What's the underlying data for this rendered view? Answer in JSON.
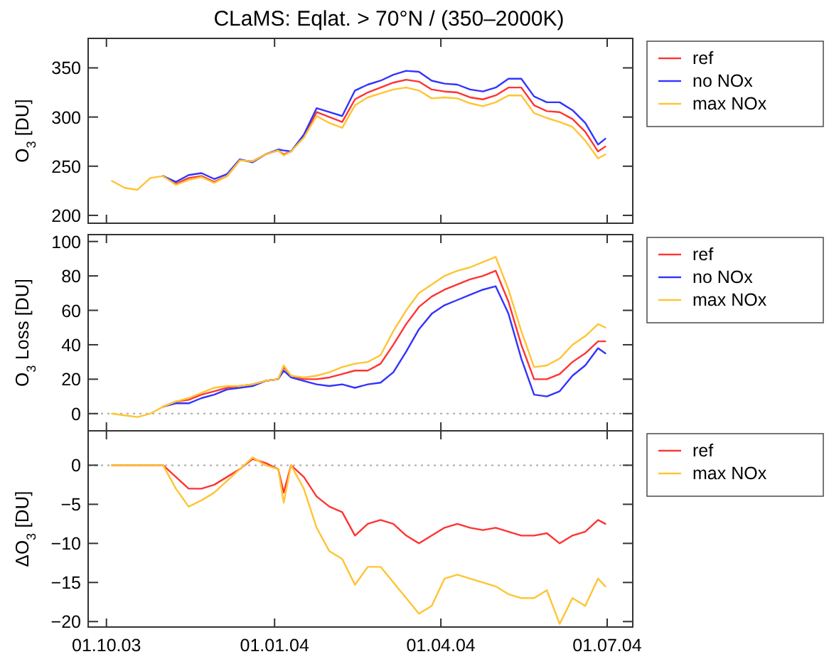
{
  "chart_data": [
    {
      "type": "line",
      "title": "CLaMS: Eqlat. > 70°N / (350–2000K)",
      "ylabel": "O$_{3}$ [DU]",
      "legend": "right",
      "tick_labels": "y",
      "x": [
        "2003-10-04",
        "2003-10-11",
        "2003-10-18",
        "2003-10-25",
        "2003-11-01",
        "2003-11-08",
        "2003-11-15",
        "2003-11-22",
        "2003-11-29",
        "2003-12-06",
        "2003-12-13",
        "2003-12-20",
        "2003-12-27",
        "2004-01-03",
        "2004-01-06",
        "2004-01-10",
        "2004-01-17",
        "2004-01-24",
        "2004-01-31",
        "2004-02-07",
        "2004-02-14",
        "2004-02-21",
        "2004-02-28",
        "2004-03-06",
        "2004-03-13",
        "2004-03-20",
        "2004-03-27",
        "2004-04-03",
        "2004-04-10",
        "2004-04-17",
        "2004-04-24",
        "2004-05-01",
        "2004-05-08",
        "2004-05-15",
        "2004-05-22",
        "2004-05-29",
        "2004-06-05",
        "2004-06-12",
        "2004-06-19",
        "2004-06-26",
        "2004-06-30"
      ],
      "xlim": [
        "2003-09-21",
        "2004-07-15"
      ],
      "xticks": [
        {
          "value": "2003-10-01",
          "label": null
        },
        {
          "value": "2004-01-01",
          "label": null
        },
        {
          "value": "2004-04-01",
          "label": null
        },
        {
          "value": "2004-07-01",
          "label": null
        }
      ],
      "ylim": [
        192,
        380
      ],
      "yticks": [
        200,
        250,
        300,
        350
      ],
      "series": [
        {
          "name": "ref",
          "color": "#ff3333",
          "values": [
            null,
            null,
            null,
            null,
            240,
            232,
            238,
            240,
            234,
            240,
            256,
            255,
            262,
            266,
            262,
            265,
            280,
            305,
            300,
            295,
            318,
            325,
            330,
            335,
            338,
            336,
            328,
            326,
            325,
            320,
            318,
            322,
            330,
            330,
            312,
            306,
            305,
            298,
            285,
            265,
            270
          ]
        },
        {
          "name": "no NOx",
          "color": "#3333ff",
          "values": [
            null,
            null,
            null,
            null,
            240,
            234,
            241,
            243,
            237,
            242,
            257,
            254,
            262,
            267,
            266,
            265,
            282,
            309,
            305,
            301,
            327,
            333,
            337,
            343,
            347,
            346,
            337,
            334,
            333,
            328,
            326,
            330,
            339,
            339,
            321,
            315,
            315,
            307,
            294,
            272,
            278
          ]
        },
        {
          "name": "max NOx",
          "color": "#ffc433",
          "values": [
            235,
            228,
            226,
            238,
            240,
            231,
            236,
            239,
            233,
            240,
            256,
            255,
            262,
            266,
            261,
            265,
            279,
            301,
            294,
            289,
            312,
            320,
            324,
            328,
            330,
            327,
            319,
            320,
            319,
            314,
            311,
            315,
            322,
            322,
            304,
            299,
            295,
            290,
            276,
            258,
            262
          ]
        }
      ]
    },
    {
      "type": "line",
      "ylabel": "O$_{3}$ Loss [DU]",
      "legend": "right",
      "tick_labels": "y",
      "x": [
        "2003-10-04",
        "2003-10-11",
        "2003-10-18",
        "2003-10-25",
        "2003-11-01",
        "2003-11-08",
        "2003-11-15",
        "2003-11-22",
        "2003-11-29",
        "2003-12-06",
        "2003-12-13",
        "2003-12-20",
        "2003-12-27",
        "2004-01-03",
        "2004-01-06",
        "2004-01-10",
        "2004-01-17",
        "2004-01-24",
        "2004-01-31",
        "2004-02-07",
        "2004-02-14",
        "2004-02-21",
        "2004-02-28",
        "2004-03-06",
        "2004-03-13",
        "2004-03-20",
        "2004-03-27",
        "2004-04-03",
        "2004-04-10",
        "2004-04-17",
        "2004-04-24",
        "2004-05-01",
        "2004-05-08",
        "2004-05-15",
        "2004-05-22",
        "2004-05-29",
        "2004-06-05",
        "2004-06-12",
        "2004-06-19",
        "2004-06-26",
        "2004-06-30"
      ],
      "xlim": [
        "2003-09-21",
        "2004-07-15"
      ],
      "xticks": [
        {
          "value": "2003-10-01",
          "label": null
        },
        {
          "value": "2004-01-01",
          "label": null
        },
        {
          "value": "2004-04-01",
          "label": null
        },
        {
          "value": "2004-07-01",
          "label": null
        }
      ],
      "ylim": [
        -10,
        104
      ],
      "yticks": [
        0,
        20,
        40,
        60,
        80,
        100
      ],
      "ref_lines": [
        {
          "axis": "y",
          "value": 0,
          "color": "#aaaaaa",
          "line_style": "dotted"
        }
      ],
      "series": [
        {
          "name": "ref",
          "color": "#ff3333",
          "values": [
            null,
            null,
            null,
            null,
            4,
            7,
            8,
            11,
            13,
            15,
            16,
            17,
            19,
            20,
            27,
            22,
            20,
            20,
            21,
            23,
            25,
            25,
            29,
            40,
            52,
            62,
            68,
            72,
            75,
            78,
            80,
            83,
            65,
            40,
            20,
            20,
            23,
            30,
            35,
            42,
            42
          ]
        },
        {
          "name": "no NOx",
          "color": "#3333ff",
          "values": [
            null,
            null,
            null,
            null,
            4,
            6,
            6,
            9,
            11,
            14,
            15,
            16,
            19,
            20,
            25,
            21,
            19,
            17,
            16,
            17,
            15,
            17,
            18,
            24,
            36,
            49,
            58,
            63,
            66,
            69,
            72,
            74,
            58,
            32,
            11,
            10,
            13,
            22,
            28,
            38,
            35
          ]
        },
        {
          "name": "max NOx",
          "color": "#ffc433",
          "values": [
            0,
            -1,
            -2,
            0,
            4,
            7,
            9,
            12,
            15,
            16,
            16,
            17,
            19,
            20,
            28,
            22,
            21,
            22,
            24,
            27,
            29,
            30,
            34,
            48,
            60,
            70,
            75,
            80,
            83,
            85,
            88,
            91,
            72,
            48,
            27,
            28,
            32,
            40,
            45,
            52,
            50
          ]
        }
      ]
    },
    {
      "type": "line",
      "ylabel": "ΔO$_{3}$ [DU]",
      "legend": "right",
      "x": [
        "2003-10-04",
        "2003-10-11",
        "2003-10-18",
        "2003-10-25",
        "2003-11-01",
        "2003-11-08",
        "2003-11-15",
        "2003-11-22",
        "2003-11-29",
        "2003-12-06",
        "2003-12-13",
        "2003-12-20",
        "2003-12-27",
        "2004-01-03",
        "2004-01-06",
        "2004-01-10",
        "2004-01-17",
        "2004-01-24",
        "2004-01-31",
        "2004-02-07",
        "2004-02-14",
        "2004-02-21",
        "2004-02-28",
        "2004-03-06",
        "2004-03-13",
        "2004-03-20",
        "2004-03-27",
        "2004-04-03",
        "2004-04-10",
        "2004-04-17",
        "2004-04-24",
        "2004-05-01",
        "2004-05-08",
        "2004-05-15",
        "2004-05-22",
        "2004-05-29",
        "2004-06-05",
        "2004-06-12",
        "2004-06-19",
        "2004-06-26",
        "2004-06-30"
      ],
      "xlim": [
        "2003-09-21",
        "2004-07-15"
      ],
      "xticks": [
        {
          "value": "2003-10-01",
          "label": "01.10.03"
        },
        {
          "value": "2004-01-01",
          "label": "01.01.04"
        },
        {
          "value": "2004-04-01",
          "label": "01.04.04"
        },
        {
          "value": "2004-07-01",
          "label": "01.07.04"
        }
      ],
      "ylim": [
        -20.7,
        4.4
      ],
      "yticks": [
        {
          "value": 0,
          "label": "0"
        },
        {
          "value": -5,
          "label": "−5"
        },
        {
          "value": -10,
          "label": "−10"
        },
        {
          "value": -15,
          "label": "−15"
        },
        {
          "value": -20,
          "label": "−20"
        }
      ],
      "ref_lines": [
        {
          "axis": "y",
          "value": 0,
          "color": "#aaaaaa",
          "line_style": "dotted"
        }
      ],
      "series": [
        {
          "name": "ref",
          "color": "#ff3333",
          "values": [
            0,
            0,
            0,
            0,
            0,
            -1.5,
            -3,
            -3,
            -2.5,
            -1.5,
            -0.5,
            0.8,
            0.3,
            -0.5,
            -3.5,
            0,
            -1.5,
            -4,
            -5.3,
            -6,
            -9,
            -7.5,
            -7,
            -7.5,
            -9,
            -10,
            -9,
            -8,
            -7.5,
            -8,
            -8.3,
            -8,
            -8.5,
            -9,
            -9,
            -8.7,
            -10,
            -9,
            -8.5,
            -7,
            -7.5
          ]
        },
        {
          "name": "max NOx",
          "color": "#ffc433",
          "values": [
            0,
            0,
            0,
            0,
            0,
            -3,
            -5.3,
            -4.5,
            -3.5,
            -2,
            -0.5,
            1,
            0,
            -0.5,
            -4.8,
            0,
            -3,
            -8,
            -11,
            -12,
            -15.3,
            -13,
            -13,
            -15,
            -17,
            -19,
            -18,
            -14.5,
            -14,
            -14.5,
            -15,
            -15.5,
            -16.5,
            -17,
            -17,
            -16,
            -20.3,
            -17,
            -18,
            -14.5,
            -15.5
          ]
        }
      ]
    }
  ]
}
